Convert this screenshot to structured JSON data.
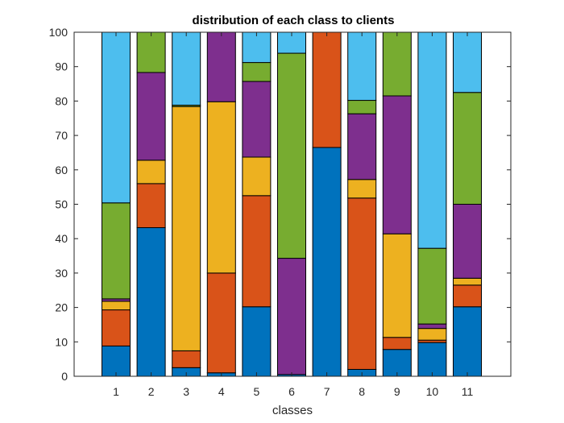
{
  "chart_data": {
    "type": "bar",
    "stacked": true,
    "title": "distribution of each class to clients",
    "xlabel": "classes",
    "ylabel": "",
    "ylim": [
      0,
      100
    ],
    "yticks": [
      0,
      10,
      20,
      30,
      40,
      50,
      60,
      70,
      80,
      90,
      100
    ],
    "categories": [
      "1",
      "2",
      "3",
      "4",
      "5",
      "6",
      "7",
      "8",
      "9",
      "10",
      "11"
    ],
    "grid": false,
    "legend": "none",
    "series": [
      {
        "color": "#0072BD",
        "values": [
          8.8,
          43.2,
          2.5,
          1.0,
          20.2,
          0.5,
          66.5,
          2.0,
          7.8,
          9.8,
          20.2
        ]
      },
      {
        "color": "#D95319",
        "values": [
          10.5,
          12.8,
          4.9,
          29.0,
          32.3,
          0.0,
          33.5,
          49.8,
          3.5,
          0.7,
          6.3
        ]
      },
      {
        "color": "#EDB120",
        "values": [
          2.5,
          6.8,
          71.0,
          49.8,
          11.2,
          0.0,
          0.0,
          5.4,
          30.1,
          3.4,
          2.0
        ]
      },
      {
        "color": "#7E2F8E",
        "values": [
          0.7,
          25.5,
          0.0,
          20.2,
          22.0,
          33.8,
          0.0,
          19.1,
          40.1,
          1.3,
          21.5
        ]
      },
      {
        "color": "#77AC30",
        "values": [
          27.9,
          11.7,
          0.4,
          0.0,
          5.5,
          59.6,
          0.0,
          3.9,
          18.5,
          22.0,
          32.5
        ]
      },
      {
        "color": "#4DBEEE",
        "values": [
          49.6,
          0.0,
          21.2,
          0.0,
          8.8,
          6.1,
          0.0,
          19.8,
          0.0,
          62.8,
          17.5
        ]
      }
    ]
  }
}
